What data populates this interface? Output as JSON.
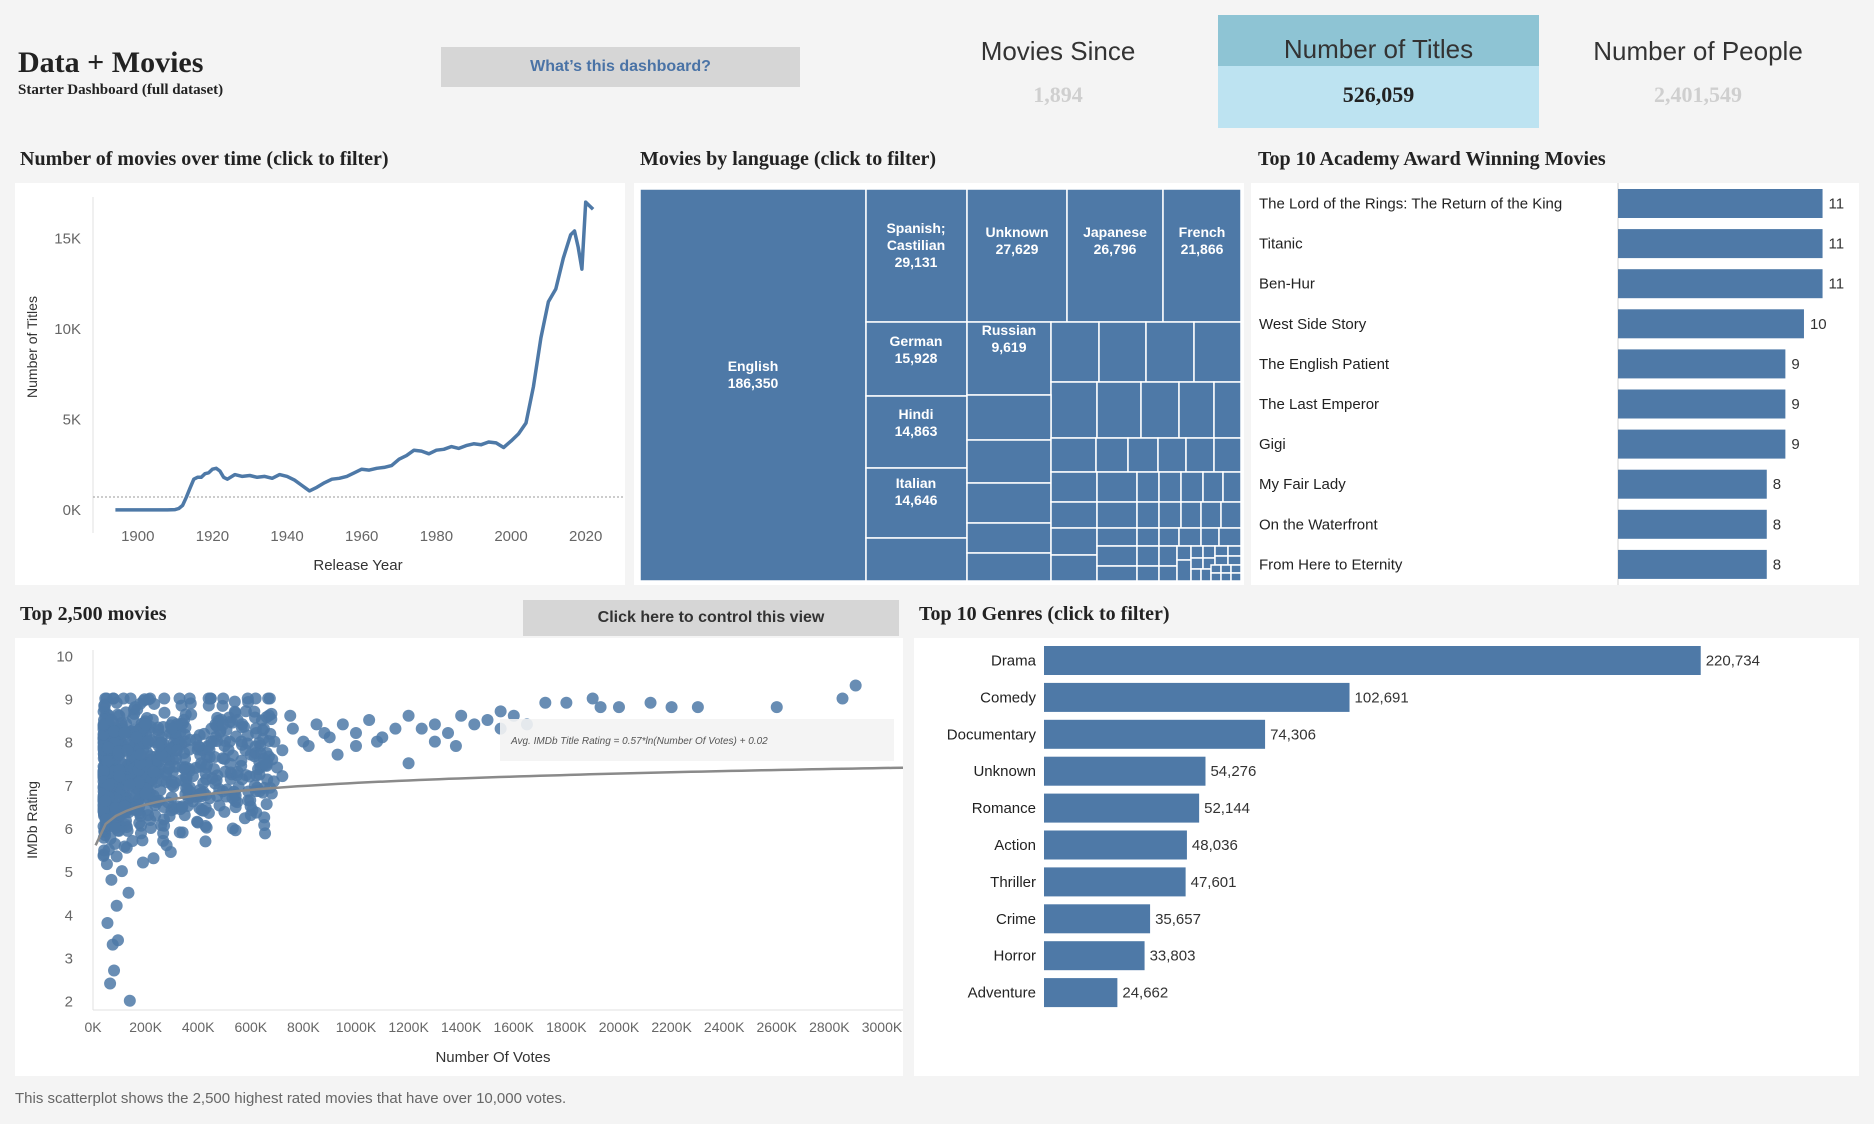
{
  "header": {
    "title": "Data + Movies",
    "subtitle": "Starter Dashboard (full dataset)",
    "info_button": "What’s this dashboard?"
  },
  "kpis": {
    "movies_since": {
      "label": "Movies Since",
      "value": "1,894"
    },
    "titles": {
      "label": "Number of Titles",
      "value": "526,059"
    },
    "people": {
      "label": "Number of People",
      "value": "2,401,549"
    }
  },
  "colors": {
    "bar": "#4e79a7",
    "kpi_header_active": "#8ec4d4",
    "kpi_value_active": "#bde3f1",
    "faded_value": "#cfcfcf",
    "trend_line": "#8a8a8a"
  },
  "line_chart": {
    "title": "Number of movies over time (click to filter)",
    "chart_data": {
      "type": "line",
      "xlabel": "Release Year",
      "ylabel": "Number of Titles",
      "xlim": [
        1888,
        2030
      ],
      "ylim": [
        -500,
        17500
      ],
      "xticks": [
        "1900",
        "1920",
        "1940",
        "1960",
        "1980",
        "2000",
        "2020"
      ],
      "yticks": [
        "0K",
        "5K",
        "10K",
        "15K"
      ],
      "x": [
        1894,
        1900,
        1905,
        1908,
        1910,
        1911,
        1912,
        1913,
        1914,
        1915,
        1916,
        1917,
        1918,
        1919,
        1920,
        1921,
        1922,
        1923,
        1924,
        1926,
        1928,
        1930,
        1932,
        1934,
        1936,
        1938,
        1940,
        1942,
        1944,
        1945,
        1946,
        1948,
        1950,
        1952,
        1954,
        1956,
        1958,
        1960,
        1962,
        1964,
        1966,
        1968,
        1970,
        1972,
        1974,
        1976,
        1978,
        1980,
        1982,
        1984,
        1986,
        1988,
        1990,
        1992,
        1994,
        1996,
        1998,
        2000,
        2002,
        2004,
        2006,
        2008,
        2010,
        2012,
        2014,
        2016,
        2017,
        2018,
        2019,
        2020,
        2021,
        2022
      ],
      "y": [
        0,
        0,
        0,
        0,
        20,
        80,
        250,
        700,
        1200,
        1700,
        1800,
        1800,
        2000,
        2050,
        2250,
        2300,
        2150,
        1800,
        1700,
        1950,
        1850,
        1900,
        1800,
        1850,
        1750,
        1950,
        1850,
        1650,
        1350,
        1200,
        1050,
        1250,
        1500,
        1700,
        1750,
        1850,
        2050,
        2250,
        2200,
        2300,
        2350,
        2450,
        2800,
        3000,
        3300,
        3250,
        3100,
        3300,
        3350,
        3500,
        3400,
        3550,
        3650,
        3600,
        3750,
        3700,
        3450,
        3800,
        4200,
        4800,
        6800,
        9500,
        11500,
        12200,
        13900,
        15200,
        15400,
        14500,
        13300,
        17000,
        16800,
        16600
      ]
    }
  },
  "treemap": {
    "title": "Movies by language (click to filter)",
    "chart_data": {
      "type": "treemap",
      "labeled": [
        {
          "name": "English",
          "value": "186,350"
        },
        {
          "name": "Spanish; Castilian",
          "value": "29,131"
        },
        {
          "name": "Unknown",
          "value": "27,629"
        },
        {
          "name": "Japanese",
          "value": "26,796"
        },
        {
          "name": "French",
          "value": "21,866"
        },
        {
          "name": "German",
          "value": "15,928"
        },
        {
          "name": "Russian",
          "value": "9,619"
        },
        {
          "name": "Hindi",
          "value": "14,863"
        },
        {
          "name": "Italian",
          "value": "14,646"
        }
      ]
    }
  },
  "awards": {
    "title": "Top 10 Academy Award Winning Movies",
    "chart_data": {
      "type": "bar",
      "categories": [
        "The Lord of the Rings: The Return of the King",
        "Titanic",
        "Ben-Hur",
        "West Side Story",
        "The English Patient",
        "The Last Emperor",
        "Gigi",
        "My Fair Lady",
        "On the Waterfront",
        "From Here to Eternity"
      ],
      "values": [
        11,
        11,
        11,
        10,
        9,
        9,
        9,
        8,
        8,
        8
      ],
      "xlim": [
        0,
        11.4
      ]
    }
  },
  "scatter": {
    "title": "Top 2,500 movies",
    "control_button": "Click here to control this view",
    "caption": "This scatterplot shows the 2,500 highest rated movies that have over 10,000 votes.",
    "trend_label": "Avg. IMDb Title Rating = 0.57*ln(Number Of Votes) + 0.02",
    "chart_data": {
      "type": "scatter",
      "xlabel": "Number Of Votes",
      "ylabel": "IMDb Rating",
      "xlim": [
        0,
        3080000
      ],
      "ylim": [
        1.6,
        10.4
      ],
      "xticks": [
        "0K",
        "200K",
        "400K",
        "600K",
        "800K",
        "1000K",
        "1200K",
        "1400K",
        "1600K",
        "1800K",
        "2000K",
        "2200K",
        "2400K",
        "2600K",
        "2800K",
        "3000K"
      ],
      "yticks": [
        "2",
        "3",
        "4",
        "5",
        "6",
        "7",
        "8",
        "9",
        "10"
      ],
      "points": [
        [
          2900000,
          9.3
        ],
        [
          2850000,
          9.0
        ],
        [
          2600000,
          8.8
        ],
        [
          2300000,
          8.8
        ],
        [
          2200000,
          8.8
        ],
        [
          2120000,
          8.9
        ],
        [
          2000000,
          8.8
        ],
        [
          1900000,
          9.0
        ],
        [
          1930000,
          8.8
        ],
        [
          1800000,
          8.9
        ],
        [
          1720000,
          8.9
        ],
        [
          1600000,
          8.6
        ],
        [
          1550000,
          8.7
        ],
        [
          1500000,
          8.5
        ],
        [
          1450000,
          8.4
        ],
        [
          1400000,
          8.6
        ],
        [
          1350000,
          8.2
        ],
        [
          1300000,
          8.4
        ],
        [
          1250000,
          8.3
        ],
        [
          1200000,
          8.6
        ],
        [
          1150000,
          8.3
        ],
        [
          1100000,
          8.1
        ],
        [
          1050000,
          8.5
        ],
        [
          1000000,
          8.2
        ],
        [
          950000,
          8.4
        ],
        [
          900000,
          8.1
        ],
        [
          850000,
          8.4
        ],
        [
          800000,
          8.0
        ],
        [
          760000,
          8.3
        ],
        [
          720000,
          7.8
        ],
        [
          690000,
          8.0
        ],
        [
          650000,
          7.6
        ],
        [
          620000,
          8.2
        ],
        [
          580000,
          7.8
        ],
        [
          550000,
          7.3
        ],
        [
          520000,
          8.0
        ],
        [
          500000,
          7.6
        ],
        [
          470000,
          7.1
        ],
        [
          450000,
          8.0
        ],
        [
          430000,
          7.4
        ],
        [
          410000,
          6.8
        ],
        [
          400000,
          7.9
        ],
        [
          380000,
          7.2
        ],
        [
          360000,
          6.9
        ],
        [
          350000,
          7.6
        ],
        [
          340000,
          6.5
        ],
        [
          320000,
          7.8
        ],
        [
          300000,
          7.0
        ],
        [
          290000,
          7.4
        ],
        [
          270000,
          6.2
        ],
        [
          260000,
          7.7
        ],
        [
          240000,
          6.6
        ],
        [
          230000,
          7.3
        ],
        [
          220000,
          6.0
        ],
        [
          210000,
          8.0
        ],
        [
          200000,
          6.8
        ],
        [
          190000,
          5.2
        ],
        [
          180000,
          7.5
        ],
        [
          170000,
          6.4
        ],
        [
          165000,
          8.1
        ],
        [
          150000,
          5.7
        ],
        [
          140000,
          7.0
        ],
        [
          135000,
          4.5
        ],
        [
          120000,
          6.5
        ],
        [
          110000,
          5.0
        ],
        [
          100000,
          7.2
        ],
        [
          95000,
          3.4
        ],
        [
          90000,
          4.2
        ],
        [
          85000,
          6.0
        ],
        [
          80000,
          2.7
        ],
        [
          75000,
          3.3
        ],
        [
          70000,
          4.8
        ],
        [
          65000,
          2.4
        ],
        [
          60000,
          5.5
        ],
        [
          55000,
          3.8
        ],
        [
          100000,
          8.6
        ],
        [
          120000,
          8.2
        ],
        [
          130000,
          7.8
        ],
        [
          200000,
          8.4
        ],
        [
          250000,
          7.9
        ],
        [
          300000,
          8.3
        ],
        [
          350000,
          8.0
        ],
        [
          180000,
          7.7
        ],
        [
          160000,
          8.8
        ],
        [
          90000,
          8.9
        ],
        [
          70000,
          8.5
        ],
        [
          60000,
          7.0
        ],
        [
          50000,
          6.2
        ],
        [
          450000,
          8.3
        ],
        [
          500000,
          7.9
        ],
        [
          550000,
          8.5
        ],
        [
          600000,
          7.7
        ],
        [
          650000,
          8.3
        ],
        [
          700000,
          7.4
        ],
        [
          750000,
          8.6
        ],
        [
          820000,
          7.9
        ],
        [
          880000,
          8.2
        ],
        [
          930000,
          7.7
        ],
        [
          1000000,
          7.9
        ],
        [
          1080000,
          8.0
        ],
        [
          140000,
          2.0
        ],
        [
          230000,
          5.3
        ],
        [
          280000,
          5.6
        ],
        [
          330000,
          5.9
        ],
        [
          420000,
          6.4
        ],
        [
          480000,
          6.9
        ],
        [
          530000,
          6.7
        ],
        [
          600000,
          6.3
        ],
        [
          680000,
          6.8
        ],
        [
          720000,
          7.2
        ],
        [
          1200000,
          7.5
        ],
        [
          1300000,
          8.0
        ],
        [
          1380000,
          7.9
        ],
        [
          1550000,
          8.3
        ],
        [
          1650000,
          8.4
        ]
      ]
    }
  },
  "genres": {
    "title": "Top 10 Genres (click to filter)",
    "chart_data": {
      "type": "bar",
      "categories": [
        "Drama",
        "Comedy",
        "Documentary",
        "Unknown",
        "Romance",
        "Action",
        "Thriller",
        "Crime",
        "Horror",
        "Adventure"
      ],
      "values": [
        220734,
        102691,
        74306,
        54276,
        52144,
        48036,
        47601,
        35657,
        33803,
        24662
      ],
      "value_labels": [
        "220,734",
        "102,691",
        "74,306",
        "54,276",
        "52,144",
        "48,036",
        "47,601",
        "35,657",
        "33,803",
        "24,662"
      ],
      "xlim": [
        0,
        242000
      ]
    }
  }
}
